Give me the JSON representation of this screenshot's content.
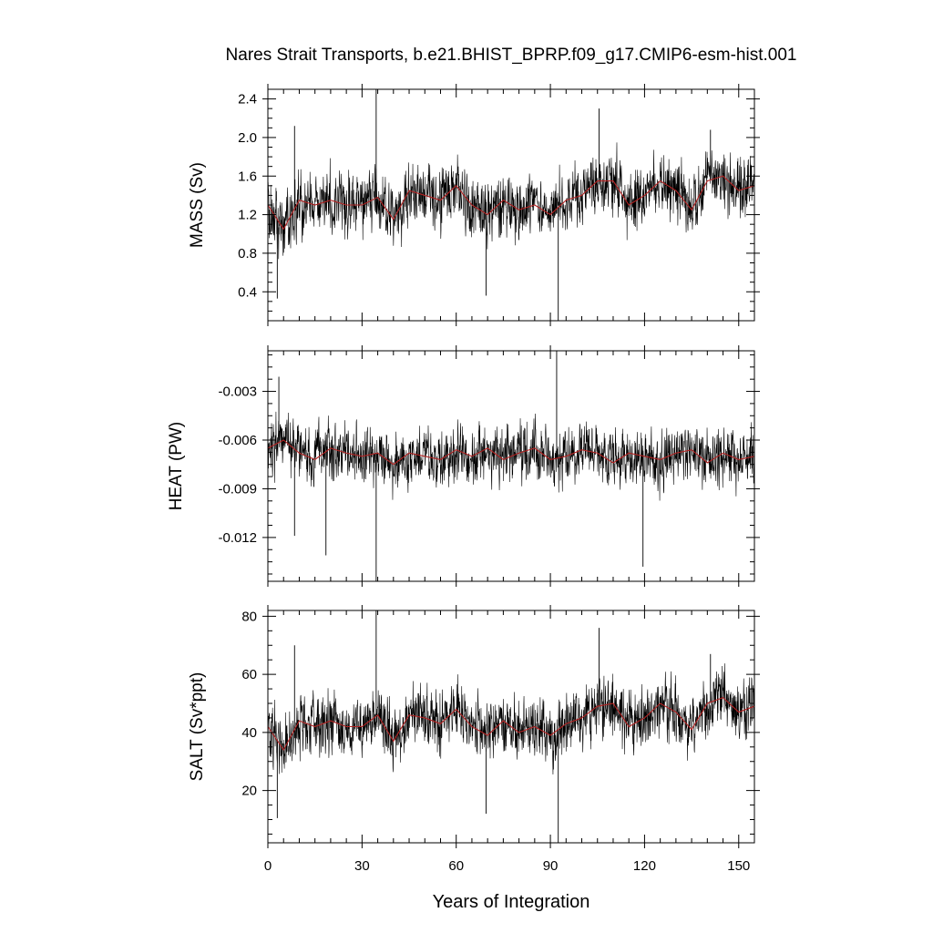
{
  "figure": {
    "title": "Nares Strait Transports, b.e21.BHIST_BPRP.f09_g17.CMIP6-esm-hist.001",
    "xlabel": "Years of Integration"
  },
  "colors": {
    "raw": "#000000",
    "smooth": "#b22222"
  },
  "chart_data": [
    {
      "type": "line",
      "panel": "mass",
      "title": "",
      "xlabel": "Years of Integration",
      "ylabel": "MASS (Sv)",
      "xlim": [
        0,
        155
      ],
      "ylim": [
        0.1,
        2.5
      ],
      "xticks": [
        0,
        30,
        60,
        90,
        120,
        150
      ],
      "yticks": [
        0.4,
        0.8,
        1.2,
        1.6,
        2.0,
        2.4
      ],
      "ytick_labels": [
        "0.4",
        "0.8",
        "1.2",
        "1.6",
        "2.0",
        "2.4"
      ],
      "grid": false,
      "mean": 1.35,
      "monthly_spread": 0.2,
      "extremes": [
        {
          "x": 3,
          "y": 0.33
        },
        {
          "x": 8.5,
          "y": 2.12
        },
        {
          "x": 34.5,
          "y": 2.5
        },
        {
          "x": 69.5,
          "y": 0.36
        },
        {
          "x": 92.5,
          "y": 0.1
        },
        {
          "x": 105.5,
          "y": 2.3
        },
        {
          "x": 141,
          "y": 2.08
        }
      ],
      "series": [
        {
          "kind": "smoothed",
          "x": [
            0,
            5,
            10,
            15,
            20,
            25,
            30,
            35,
            40,
            45,
            50,
            55,
            60,
            65,
            70,
            75,
            80,
            85,
            90,
            95,
            100,
            105,
            110,
            115,
            120,
            125,
            130,
            135,
            140,
            145,
            150,
            155
          ],
          "values": [
            1.3,
            1.05,
            1.35,
            1.3,
            1.35,
            1.3,
            1.3,
            1.38,
            1.15,
            1.45,
            1.4,
            1.35,
            1.5,
            1.3,
            1.2,
            1.35,
            1.25,
            1.3,
            1.2,
            1.35,
            1.4,
            1.55,
            1.55,
            1.3,
            1.4,
            1.55,
            1.45,
            1.25,
            1.55,
            1.6,
            1.45,
            1.5
          ]
        }
      ]
    },
    {
      "type": "line",
      "panel": "heat",
      "title": "",
      "xlabel": "Years of Integration",
      "ylabel": "HEAT (PW)",
      "xlim": [
        0,
        155
      ],
      "ylim": [
        -0.0147,
        -0.0005
      ],
      "xticks": [
        0,
        30,
        60,
        90,
        120,
        150
      ],
      "yticks": [
        -0.012,
        -0.009,
        -0.006,
        -0.003
      ],
      "ytick_labels": [
        "-0.012",
        "-0.009",
        "-0.006",
        "-0.003"
      ],
      "grid": false,
      "mean": -0.0069,
      "monthly_spread": 0.0011,
      "extremes": [
        {
          "x": 3.5,
          "y": -0.0021
        },
        {
          "x": 8.5,
          "y": -0.0119
        },
        {
          "x": 18.5,
          "y": -0.0131
        },
        {
          "x": 34.5,
          "y": -0.0147
        },
        {
          "x": 92,
          "y": -0.0005
        },
        {
          "x": 119.5,
          "y": -0.0138
        }
      ],
      "series": [
        {
          "kind": "smoothed",
          "x": [
            0,
            5,
            10,
            15,
            20,
            25,
            30,
            35,
            40,
            45,
            50,
            55,
            60,
            65,
            70,
            75,
            80,
            85,
            90,
            95,
            100,
            105,
            110,
            115,
            120,
            125,
            130,
            135,
            140,
            145,
            150,
            155
          ],
          "values": [
            -0.0065,
            -0.006,
            -0.0068,
            -0.0072,
            -0.0065,
            -0.0068,
            -0.007,
            -0.0068,
            -0.0075,
            -0.0068,
            -0.007,
            -0.0072,
            -0.0066,
            -0.007,
            -0.0065,
            -0.0072,
            -0.0068,
            -0.0065,
            -0.0072,
            -0.007,
            -0.0066,
            -0.0068,
            -0.0074,
            -0.0068,
            -0.007,
            -0.0072,
            -0.0068,
            -0.0066,
            -0.0074,
            -0.0068,
            -0.0072,
            -0.007
          ]
        }
      ]
    },
    {
      "type": "line",
      "panel": "salt",
      "title": "",
      "xlabel": "Years of Integration",
      "ylabel": "SALT (Sv*ppt)",
      "xlim": [
        0,
        155
      ],
      "ylim": [
        2,
        82
      ],
      "xticks": [
        0,
        30,
        60,
        90,
        120,
        150
      ],
      "yticks": [
        20,
        40,
        60,
        80
      ],
      "ytick_labels": [
        "20",
        "40",
        "60",
        "80"
      ],
      "grid": false,
      "mean": 44,
      "monthly_spread": 6.5,
      "extremes": [
        {
          "x": 3,
          "y": 10.5
        },
        {
          "x": 8.5,
          "y": 70
        },
        {
          "x": 34.5,
          "y": 82
        },
        {
          "x": 69.5,
          "y": 12
        },
        {
          "x": 92.5,
          "y": 2
        },
        {
          "x": 105.5,
          "y": 76
        },
        {
          "x": 141,
          "y": 67
        }
      ],
      "series": [
        {
          "kind": "smoothed",
          "x": [
            0,
            5,
            10,
            15,
            20,
            25,
            30,
            35,
            40,
            45,
            50,
            55,
            60,
            65,
            70,
            75,
            80,
            85,
            90,
            95,
            100,
            105,
            110,
            115,
            120,
            125,
            130,
            135,
            140,
            145,
            150,
            155
          ],
          "values": [
            42,
            34,
            44,
            42,
            44,
            42,
            42,
            46,
            37,
            46,
            45,
            43,
            48,
            42,
            39,
            44,
            40,
            42,
            39,
            43,
            45,
            49,
            50,
            42,
            45,
            50,
            47,
            41,
            50,
            52,
            47,
            49
          ]
        }
      ]
    }
  ]
}
